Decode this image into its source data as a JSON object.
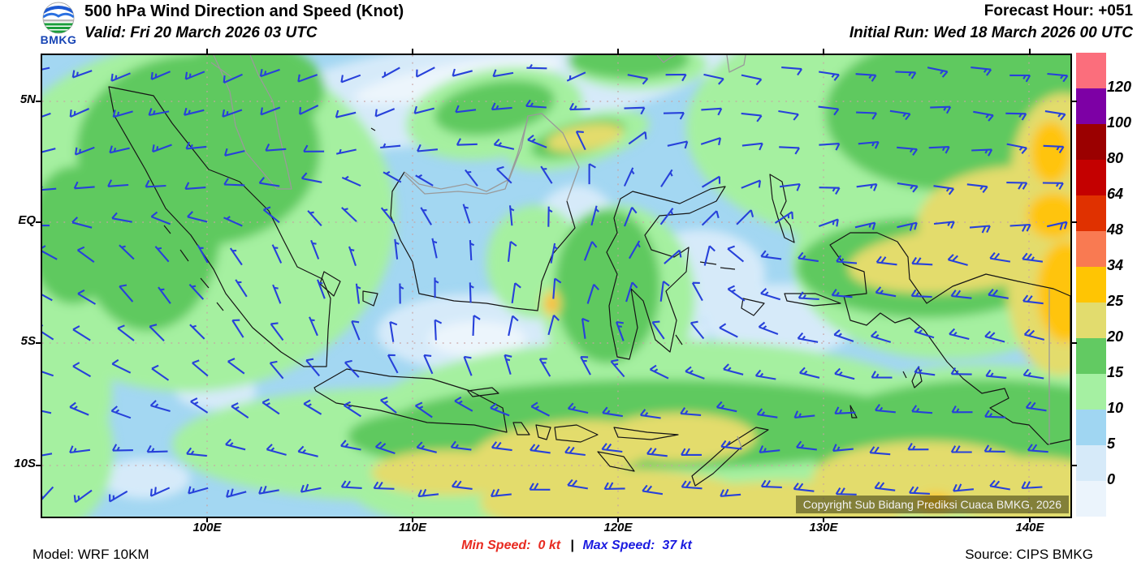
{
  "header": {
    "logo_text": "BMKG",
    "title": "500 hPa Wind Direction and Speed (Knot)",
    "valid": "Valid: Fri 20 March 2026 03 UTC",
    "forecast_hour": "Forecast Hour: +051",
    "initial_run": "Initial Run: Wed 18 March 2026 00 UTC"
  },
  "map": {
    "lat_labels": [
      "5N",
      "EQ",
      "5S",
      "10S"
    ],
    "lon_labels": [
      "100E",
      "110E",
      "120E",
      "130E",
      "140E"
    ],
    "copyright": "Copyright Sub Bidang Prediksi Cuaca BMKG, 2026"
  },
  "legend": {
    "labels": [
      "120",
      "100",
      "80",
      "64",
      "48",
      "34",
      "25",
      "20",
      "15",
      "10",
      "5",
      "0"
    ],
    "colors": [
      "#FB6E7C",
      "#7D00A5",
      "#9B0000",
      "#C40000",
      "#E03100",
      "#F97A52",
      "#FFC503",
      "#E2DC6E",
      "#62CA62",
      "#A5F0A2",
      "#A0D6F2",
      "#D6EAF9",
      "#EBF4FC"
    ]
  },
  "footer": {
    "model": "Model: WRF 10KM",
    "min_label": "Min Speed:",
    "min_value": "0 kt",
    "separator": "|",
    "max_label": "Max Speed:",
    "max_value": "37 kt",
    "source": "Source: CIPS BMKG"
  },
  "chart_data": {
    "type": "heatmap",
    "product": "wind-barb-map",
    "level": "500 hPa",
    "units": "knot",
    "lon_range": [
      92,
      142
    ],
    "lat_range": [
      -12,
      7
    ],
    "min_speed_kt": 0,
    "max_speed_kt": 37,
    "barb_color": "#2741DA",
    "gridline_color": "#C8A2A2",
    "band_colors": {
      "0": "#ECF5FC",
      "0-5": "#D6EAF9",
      "5-10": "#A3D7F2",
      "10-15": "#A5F0A0",
      "15-20": "#5FC95F",
      "20-25": "#E3DC6C",
      "25-34": "#FFC40A",
      "34-48": "#F97A52"
    },
    "shading_regions": [
      [
        "0-5",
        532,
        42,
        300,
        62,
        -8
      ],
      [
        "0",
        512,
        30,
        130,
        20,
        -10
      ],
      [
        "0-5",
        304,
        160,
        150,
        48,
        -35
      ],
      [
        "0-5",
        532,
        342,
        120,
        48,
        0
      ],
      [
        "0",
        536,
        350,
        60,
        22,
        0
      ],
      [
        "0-5",
        658,
        240,
        60,
        80,
        0
      ],
      [
        "0-5",
        810,
        270,
        80,
        55,
        0
      ],
      [
        "0-5",
        760,
        345,
        60,
        35,
        0
      ],
      [
        "0-5",
        911,
        327,
        95,
        45,
        0
      ],
      [
        "0-5",
        937,
        130,
        75,
        40,
        0
      ],
      [
        "0-5",
        924,
        40,
        80,
        30,
        0
      ],
      [
        "0-5",
        886,
        10,
        90,
        28,
        0
      ],
      [
        "0-5",
        127,
        522,
        55,
        25,
        0
      ],
      [
        "0-5",
        304,
        500,
        65,
        20,
        0
      ],
      [
        "0-5",
        51,
        145,
        45,
        32,
        0
      ],
      [
        "0-5",
        1150,
        460,
        60,
        25,
        0
      ],
      [
        "0-5",
        214,
        415,
        50,
        22,
        0
      ],
      [
        "10-15",
        180,
        200,
        255,
        215,
        0
      ],
      [
        "10-15",
        440,
        480,
        280,
        70,
        0
      ],
      [
        "10-15",
        759,
        450,
        360,
        100,
        0
      ],
      [
        "10-15",
        861,
        537,
        480,
        75,
        0
      ],
      [
        "10-15",
        1063,
        90,
        270,
        150,
        0
      ],
      [
        "10-15",
        1114,
        255,
        190,
        120,
        0
      ],
      [
        "10-15",
        557,
        72,
        110,
        55,
        -10
      ],
      [
        "10-15",
        709,
        300,
        95,
        115,
        0
      ],
      [
        "10-15",
        734,
        12,
        85,
        30,
        0
      ],
      [
        "10-15",
        1228,
        40,
        120,
        90,
        0
      ],
      [
        "10-15",
        13,
        490,
        75,
        95,
        0
      ],
      [
        "10-15",
        26,
        417,
        60,
        80,
        0
      ],
      [
        "10-15",
        1164,
        477,
        230,
        95,
        0
      ],
      [
        "10-15",
        660,
        105,
        90,
        30,
        -15
      ],
      [
        "10-15",
        607,
        255,
        60,
        70,
        0
      ],
      [
        "15-20",
        192,
        117,
        150,
        118,
        0
      ],
      [
        "15-20",
        253,
        42,
        95,
        60,
        0
      ],
      [
        "15-20",
        38,
        222,
        55,
        85,
        0
      ],
      [
        "15-20",
        130,
        210,
        90,
        130,
        0
      ],
      [
        "15-20",
        759,
        455,
        330,
        55,
        0
      ],
      [
        "15-20",
        506,
        470,
        130,
        35,
        0
      ],
      [
        "15-20",
        1114,
        72,
        150,
        95,
        0
      ],
      [
        "15-20",
        1230,
        40,
        95,
        72,
        0
      ],
      [
        "15-20",
        722,
        5,
        75,
        24,
        0
      ],
      [
        "15-20",
        557,
        65,
        75,
        32,
        -10
      ],
      [
        "15-20",
        696,
        285,
        65,
        95,
        0
      ],
      [
        "15-20",
        1089,
        262,
        160,
        62,
        0
      ],
      [
        "15-20",
        1164,
        480,
        220,
        80,
        0
      ],
      [
        "15-20",
        660,
        103,
        60,
        20,
        -15
      ],
      [
        "20-25",
        500,
        515,
        95,
        28,
        0
      ],
      [
        "20-25",
        645,
        486,
        115,
        35,
        -5
      ],
      [
        "20-25",
        784,
        471,
        95,
        30,
        0
      ],
      [
        "20-25",
        709,
        552,
        170,
        42,
        0
      ],
      [
        "20-25",
        911,
        561,
        150,
        36,
        0
      ],
      [
        "20-25",
        1088,
        522,
        140,
        46,
        0
      ],
      [
        "20-25",
        1215,
        537,
        115,
        42,
        0
      ],
      [
        "20-25",
        1127,
        252,
        135,
        40,
        -5
      ],
      [
        "20-25",
        1203,
        207,
        125,
        70,
        0
      ],
      [
        "20-25",
        1258,
        147,
        65,
        100,
        0
      ],
      [
        "20-25",
        1253,
        285,
        65,
        110,
        0
      ],
      [
        "20-25",
        668,
        102,
        48,
        16,
        -10
      ],
      [
        "20-25",
        627,
        306,
        12,
        18,
        0
      ],
      [
        "25-34",
        1245,
        198,
        32,
        28,
        0
      ],
      [
        "25-34",
        1260,
        292,
        35,
        62,
        0
      ],
      [
        "25-34",
        1242,
        120,
        25,
        38,
        0
      ],
      [
        "25-34",
        627,
        306,
        6,
        11,
        0
      ],
      [
        "25-34",
        1100,
        552,
        22,
        12,
        0
      ],
      [
        "34-48",
        627,
        308,
        2.5,
        5,
        0
      ]
    ],
    "wind_grid": {
      "lons": [
        92,
        98,
        104,
        110,
        116,
        122,
        128,
        134,
        142
      ],
      "lats": [
        7,
        4,
        1,
        -2,
        -5,
        -8,
        -12
      ],
      "dir_deg": [
        [
          250,
          252,
          250,
          245,
          265,
          100,
          95,
          95,
          92
        ],
        [
          250,
          252,
          250,
          248,
          270,
          85,
          92,
          95,
          95
        ],
        [
          262,
          268,
          285,
          310,
          340,
          30,
          80,
          92,
          95
        ],
        [
          305,
          325,
          345,
          358,
          10,
          45,
          275,
          278,
          282
        ],
        [
          295,
          308,
          325,
          355,
          15,
          325,
          290,
          282,
          277
        ],
        [
          280,
          292,
          300,
          298,
          290,
          280,
          272,
          270,
          270
        ],
        [
          205,
          228,
          252,
          263,
          268,
          270,
          271,
          272,
          273
        ]
      ],
      "speed_kt": [
        [
          15,
          14,
          12,
          7,
          5,
          8,
          12,
          14,
          15
        ],
        [
          16,
          15,
          12,
          8,
          18,
          8,
          12,
          13,
          13
        ],
        [
          12,
          10,
          8,
          5,
          5,
          6,
          12,
          16,
          18
        ],
        [
          8,
          7,
          5,
          5,
          8,
          9,
          14,
          18,
          26
        ],
        [
          10,
          8,
          8,
          8,
          10,
          12,
          12,
          15,
          18
        ],
        [
          12,
          14,
          15,
          16,
          16,
          17,
          15,
          15,
          17
        ],
        [
          14,
          17,
          20,
          22,
          22,
          22,
          20,
          20,
          21
        ]
      ]
    }
  }
}
